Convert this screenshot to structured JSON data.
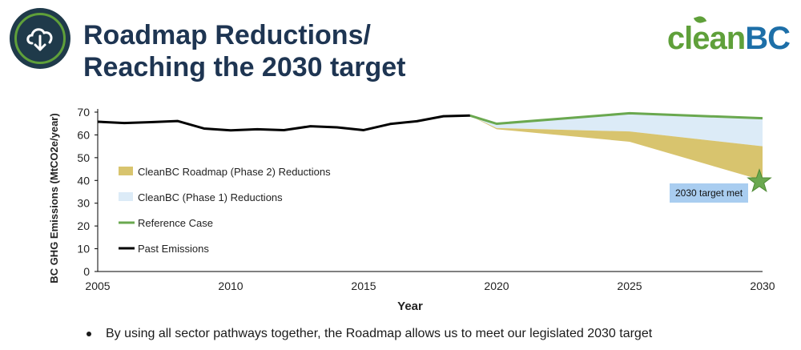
{
  "header": {
    "title_line1": "Roadmap Reductions/",
    "title_line2": "Reaching the 2030 target",
    "logo_part1": "clean",
    "logo_part2": "BC"
  },
  "bullet_text": "By using all sector pathways together, the Roadmap allows us to meet our legislated 2030 target",
  "colors": {
    "past": "#000000",
    "reference": "#6aa84f",
    "phase1": "#dcebf7",
    "phase2": "#d8c46e",
    "callout": "#a9cdf0",
    "star": "#6aa84f"
  },
  "chart_data": {
    "type": "area",
    "xlabel": "Year",
    "ylabel": "BC GHG Emissions (MtCO2e/year)",
    "xlim": [
      2005,
      2030
    ],
    "ylim": [
      0,
      70
    ],
    "xticks": [
      2005,
      2010,
      2015,
      2020,
      2025,
      2030
    ],
    "yticks": [
      0,
      10,
      20,
      30,
      40,
      50,
      60,
      70
    ],
    "legend": [
      {
        "key": "phase2",
        "label": "CleanBC Roadmap (Phase 2) Reductions"
      },
      {
        "key": "phase1",
        "label": "CleanBC (Phase 1) Reductions"
      },
      {
        "key": "reference",
        "label": "Reference Case"
      },
      {
        "key": "past",
        "label": "Past Emissions"
      }
    ],
    "past_emissions": {
      "x": [
        2005,
        2006,
        2007,
        2008,
        2009,
        2010,
        2011,
        2012,
        2013,
        2014,
        2015,
        2016,
        2017,
        2018,
        2019
      ],
      "y": [
        65.8,
        65.2,
        65.6,
        66.1,
        62.8,
        62.0,
        62.5,
        62.1,
        63.8,
        63.3,
        62.1,
        64.8,
        66.0,
        68.2,
        68.5
      ]
    },
    "reference_case": {
      "x": [
        2019,
        2020,
        2025,
        2030
      ],
      "y": [
        68.5,
        64.9,
        69.5,
        67.3
      ]
    },
    "phase1_pathway": {
      "x": [
        2019,
        2020,
        2025,
        2030
      ],
      "y": [
        68.5,
        63.0,
        61.5,
        55.0
      ]
    },
    "phase2_pathway": {
      "x": [
        2019,
        2020,
        2025,
        2030
      ],
      "y": [
        68.5,
        62.5,
        57.0,
        40.0
      ]
    },
    "target": {
      "year": 2030,
      "value": 39.5,
      "label": "2030 target met"
    }
  }
}
